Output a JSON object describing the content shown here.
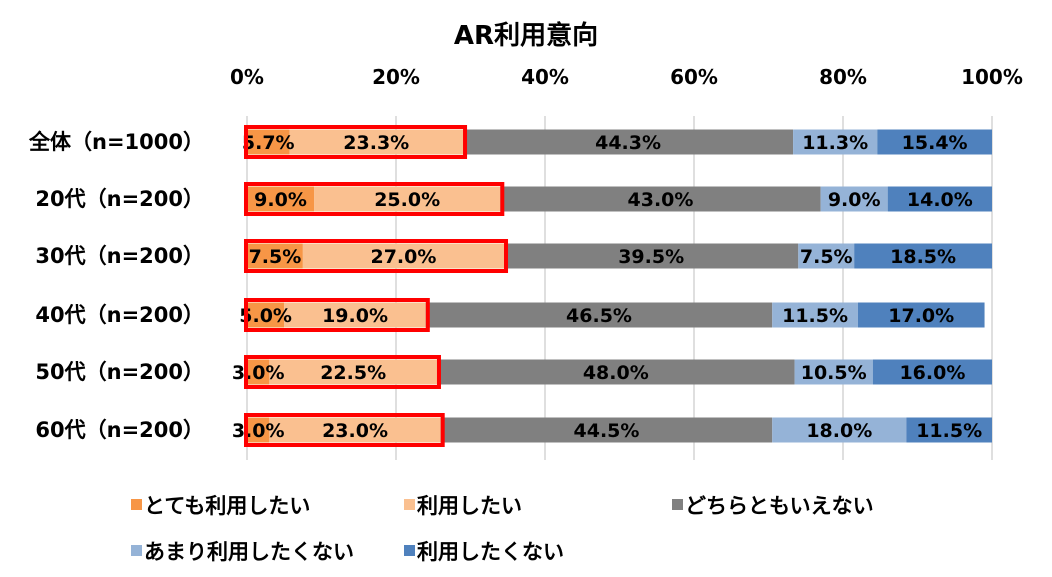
{
  "chart_data": {
    "type": "bar",
    "orientation": "horizontal",
    "stacked": "percent",
    "title": "AR利用意向",
    "categories": [
      "全体（n=1000）",
      "20代（n=200）",
      "30代（n=200）",
      "40代（n=200）",
      "50代（n=200）",
      "60代（n=200）"
    ],
    "xlim": [
      0,
      100
    ],
    "xticks": [
      "0%",
      "20%",
      "40%",
      "60%",
      "80%",
      "100%"
    ],
    "grid": true,
    "legend_position": "bottom",
    "series": [
      {
        "name": "とても利用したい",
        "color": "#F79646",
        "values": [
          5.7,
          9.0,
          7.5,
          5.0,
          3.0,
          3.0
        ],
        "labels": [
          "5.7%",
          "9.0%",
          "7.5%",
          "5.0%",
          "3.0%",
          "3.0%"
        ]
      },
      {
        "name": "利用したい",
        "color": "#FAC090",
        "values": [
          23.3,
          25.0,
          27.0,
          19.0,
          22.5,
          23.0
        ],
        "labels": [
          "23.3%",
          "25.0%",
          "27.0%",
          "19.0%",
          "22.5%",
          "23.0%"
        ]
      },
      {
        "name": "どちらともいえない",
        "color": "#808080",
        "values": [
          44.3,
          43.0,
          39.5,
          46.5,
          48.0,
          44.5
        ],
        "labels": [
          "44.3%",
          "43.0%",
          "39.5%",
          "46.5%",
          "48.0%",
          "44.5%"
        ]
      },
      {
        "name": "あまり利用したくない",
        "color": "#95B3D7",
        "values": [
          11.3,
          9.0,
          7.5,
          11.5,
          10.5,
          18.0
        ],
        "labels": [
          "11.3%",
          "9.0%",
          "7.5%",
          "11.5%",
          "10.5%",
          "18.0%"
        ]
      },
      {
        "name": "利用したくない",
        "color": "#4F81BD",
        "values": [
          15.4,
          14.0,
          18.5,
          17.0,
          16.0,
          11.5
        ],
        "labels": [
          "15.4%",
          "14.0%",
          "18.5%",
          "17.0%",
          "16.0%",
          "11.5%"
        ]
      }
    ],
    "highlight": {
      "series": [
        0,
        1
      ],
      "color": "#FF0000"
    }
  }
}
